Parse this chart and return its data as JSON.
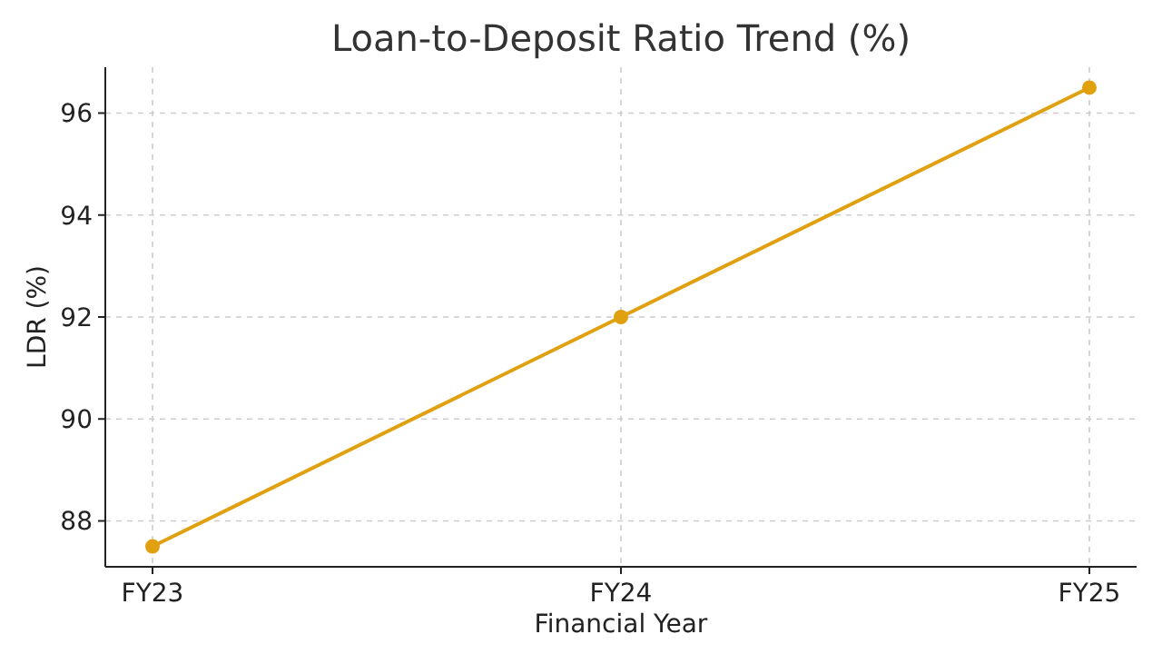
{
  "chart_data": {
    "type": "line",
    "title": "Loan-to-Deposit Ratio Trend (%)",
    "xlabel": "Financial Year",
    "ylabel": "LDR (%)",
    "categories": [
      "FY23",
      "FY24",
      "FY25"
    ],
    "series": [
      {
        "color": "#e0a010",
        "values": [
          87.5,
          92,
          96.5
        ]
      }
    ],
    "ylim": [
      87.1,
      96.9
    ],
    "yticks": [
      88,
      90,
      92,
      94,
      96
    ],
    "grid": true,
    "marker": "circle",
    "line_style": "solid"
  }
}
